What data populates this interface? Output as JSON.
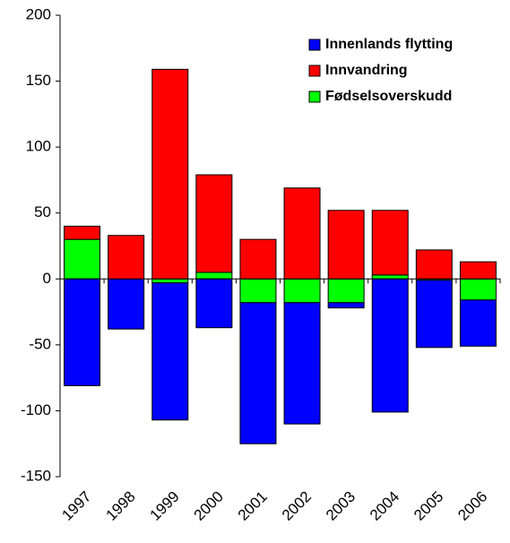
{
  "chart_data": {
    "type": "stacked-bar",
    "categories": [
      "1997",
      "1998",
      "1999",
      "2000",
      "2001",
      "2002",
      "2003",
      "2004",
      "2005",
      "2006"
    ],
    "series": [
      {
        "name": "Innenlands flytting",
        "color": "#0000ff",
        "values": [
          -81,
          -38,
          -104,
          -37,
          -107,
          -92,
          -4,
          -101,
          -51,
          -35
        ]
      },
      {
        "name": "Innvandring",
        "color": "#ff0000",
        "values": [
          10,
          33,
          159,
          74,
          30,
          69,
          52,
          49,
          22,
          13
        ]
      },
      {
        "name": "Fødselsoverskudd",
        "color": "#00ff00",
        "values": [
          30,
          0,
          -3,
          5,
          -18,
          -18,
          -18,
          3,
          -1,
          -16
        ]
      }
    ],
    "ylim": [
      -150,
      200
    ],
    "yticks": [
      -150,
      -100,
      -50,
      0,
      50,
      100,
      150,
      200
    ],
    "legend": "top-right"
  }
}
